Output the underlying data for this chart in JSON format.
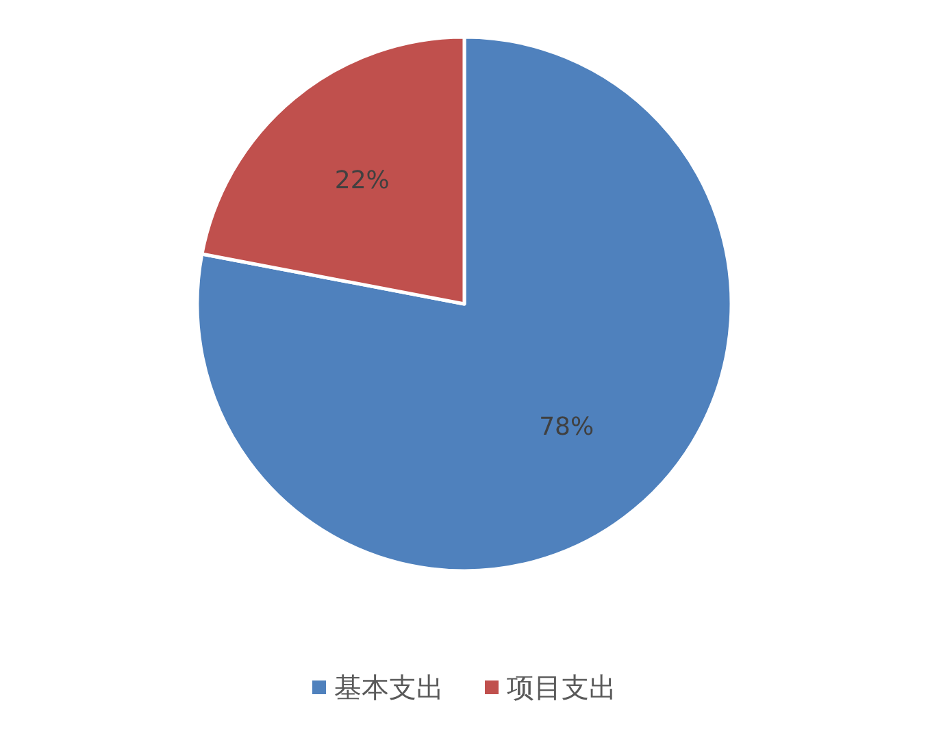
{
  "chart_data": {
    "type": "pie",
    "categories": [
      "基本支出",
      "项目支出"
    ],
    "values": [
      78,
      22
    ],
    "colors": [
      "#4f81bd",
      "#c0504d"
    ],
    "value_labels": [
      "78%",
      "22%"
    ],
    "legend": "bottom"
  }
}
